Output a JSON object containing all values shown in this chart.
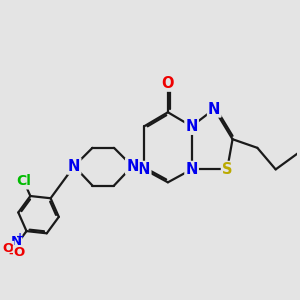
{
  "bg_color": "#e4e4e4",
  "bond_color": "#1a1a1a",
  "bond_width": 1.6,
  "dbo": 0.06,
  "atom_colors": {
    "N": "#0000ee",
    "O": "#ee0000",
    "S": "#bbaa00",
    "Cl": "#00bb00",
    "C": "#1a1a1a"
  },
  "fs": 10.5,
  "fs_small": 9.0
}
